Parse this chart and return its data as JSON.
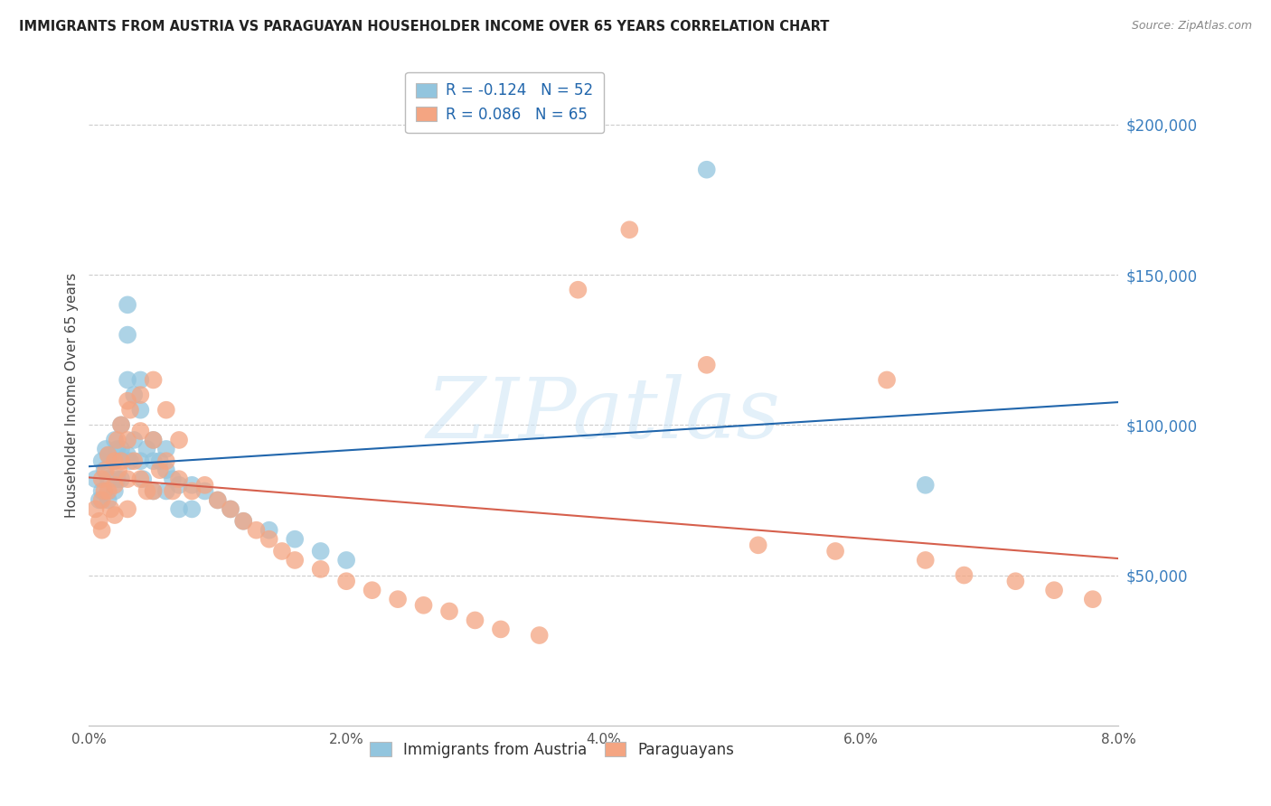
{
  "title": "IMMIGRANTS FROM AUSTRIA VS PARAGUAYAN HOUSEHOLDER INCOME OVER 65 YEARS CORRELATION CHART",
  "source": "Source: ZipAtlas.com",
  "ylabel": "Householder Income Over 65 years",
  "xtick_labels": [
    "0.0%",
    "2.0%",
    "4.0%",
    "6.0%",
    "8.0%"
  ],
  "xlim": [
    0.0,
    0.08
  ],
  "ylim": [
    0,
    220000
  ],
  "watermark_text": "ZIPatlas",
  "legend_r1": "-0.124",
  "legend_n1": "52",
  "legend_r2": "0.086",
  "legend_n2": "65",
  "blue_scatter_color": "#92c5de",
  "pink_scatter_color": "#f4a582",
  "blue_line_color": "#2166ac",
  "pink_line_color": "#d6604d",
  "background_color": "#ffffff",
  "grid_color": "#cccccc",
  "title_color": "#222222",
  "ytick_color": "#3a7ebf",
  "austria_x": [
    0.0005,
    0.0008,
    0.001,
    0.001,
    0.0012,
    0.0013,
    0.0015,
    0.0015,
    0.0015,
    0.0017,
    0.002,
    0.002,
    0.002,
    0.0022,
    0.0022,
    0.0025,
    0.0025,
    0.0025,
    0.003,
    0.003,
    0.003,
    0.003,
    0.0032,
    0.0035,
    0.0035,
    0.004,
    0.004,
    0.004,
    0.0042,
    0.0045,
    0.005,
    0.005,
    0.005,
    0.0055,
    0.006,
    0.006,
    0.006,
    0.0065,
    0.007,
    0.007,
    0.008,
    0.008,
    0.009,
    0.01,
    0.011,
    0.012,
    0.014,
    0.016,
    0.018,
    0.02,
    0.048,
    0.065
  ],
  "austria_y": [
    82000,
    75000,
    88000,
    78000,
    85000,
    92000,
    90000,
    82000,
    75000,
    88000,
    95000,
    88000,
    78000,
    92000,
    82000,
    100000,
    92000,
    82000,
    140000,
    130000,
    115000,
    90000,
    88000,
    110000,
    95000,
    115000,
    105000,
    88000,
    82000,
    92000,
    95000,
    88000,
    78000,
    88000,
    92000,
    85000,
    78000,
    82000,
    80000,
    72000,
    80000,
    72000,
    78000,
    75000,
    72000,
    68000,
    65000,
    62000,
    58000,
    55000,
    185000,
    80000
  ],
  "paraguay_x": [
    0.0005,
    0.0008,
    0.001,
    0.001,
    0.001,
    0.0012,
    0.0013,
    0.0015,
    0.0015,
    0.0017,
    0.002,
    0.002,
    0.002,
    0.0022,
    0.0023,
    0.0025,
    0.0025,
    0.003,
    0.003,
    0.003,
    0.003,
    0.0032,
    0.0035,
    0.004,
    0.004,
    0.004,
    0.0045,
    0.005,
    0.005,
    0.005,
    0.0055,
    0.006,
    0.006,
    0.0065,
    0.007,
    0.007,
    0.008,
    0.009,
    0.01,
    0.011,
    0.012,
    0.013,
    0.014,
    0.015,
    0.016,
    0.018,
    0.02,
    0.022,
    0.024,
    0.026,
    0.028,
    0.03,
    0.032,
    0.035,
    0.038,
    0.042,
    0.048,
    0.052,
    0.058,
    0.062,
    0.065,
    0.068,
    0.072,
    0.075,
    0.078
  ],
  "paraguay_y": [
    72000,
    68000,
    82000,
    75000,
    65000,
    78000,
    85000,
    90000,
    78000,
    72000,
    88000,
    80000,
    70000,
    95000,
    85000,
    100000,
    88000,
    108000,
    95000,
    82000,
    72000,
    105000,
    88000,
    110000,
    98000,
    82000,
    78000,
    115000,
    95000,
    78000,
    85000,
    105000,
    88000,
    78000,
    95000,
    82000,
    78000,
    80000,
    75000,
    72000,
    68000,
    65000,
    62000,
    58000,
    55000,
    52000,
    48000,
    45000,
    42000,
    40000,
    38000,
    35000,
    32000,
    30000,
    145000,
    165000,
    120000,
    60000,
    58000,
    115000,
    55000,
    50000,
    48000,
    45000,
    42000
  ]
}
